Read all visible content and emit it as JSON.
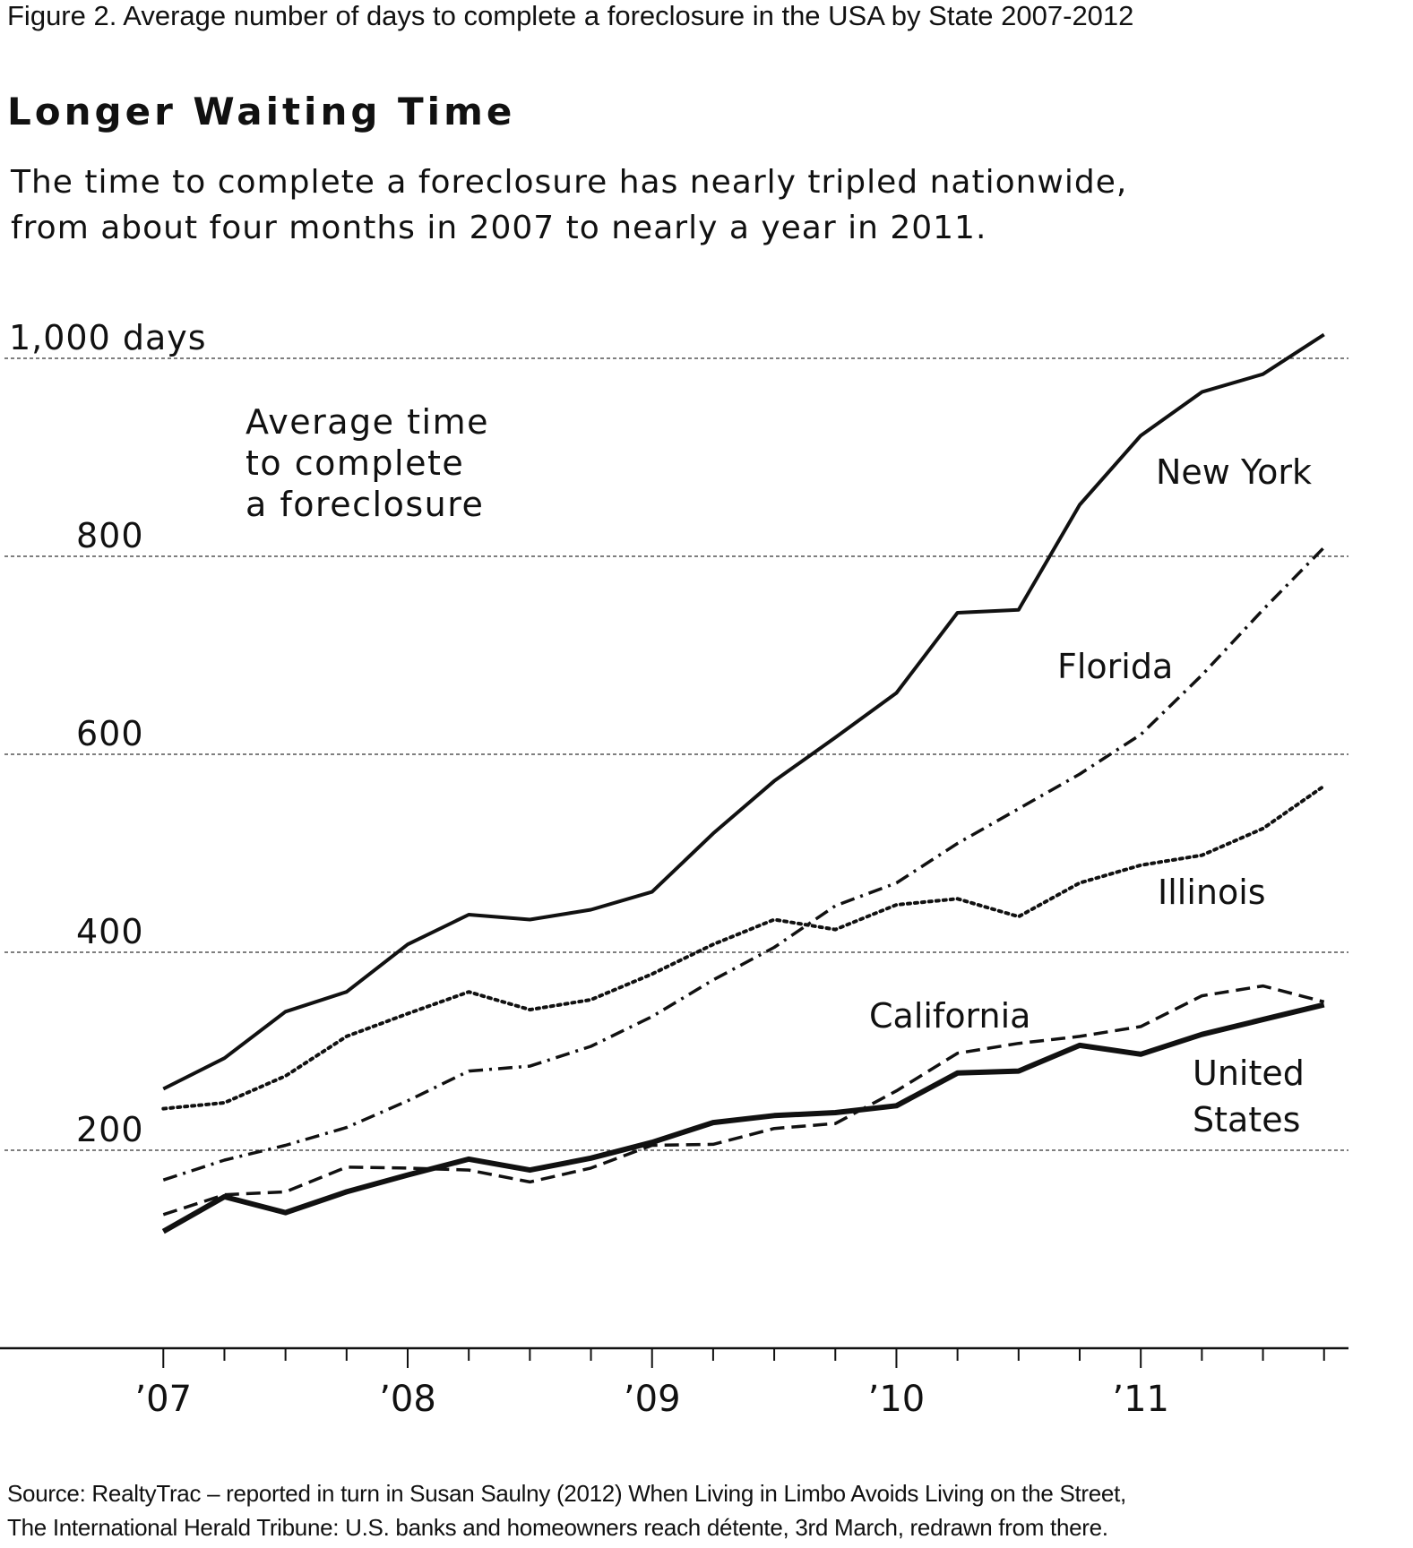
{
  "figure_caption": "Figure 2.  Average number of days to complete a foreclosure in the USA by State 2007-2012",
  "headline": "Longer Waiting Time",
  "subtitle_lines": [
    "The time to complete a foreclosure has nearly tripled nationwide,",
    "from about four months in 2007 to nearly a year in 2011."
  ],
  "source_lines": [
    "Source: RealtyTrac – reported in turn in Susan Saulny (2012) When Living in Limbo Avoids Living on the Street,",
    "The International Herald Tribune: U.S. banks and homeowners reach détente, 3rd March, redrawn from there."
  ],
  "chart_data": {
    "type": "line",
    "title": "Longer Waiting Time",
    "annotation_lines": [
      "Average time",
      "to complete",
      "a foreclosure"
    ],
    "ylim": [
      0,
      1000
    ],
    "y_ticks": [
      {
        "value": 200,
        "label": "200"
      },
      {
        "value": 400,
        "label": "400"
      },
      {
        "value": 600,
        "label": "600"
      },
      {
        "value": 800,
        "label": "800"
      },
      {
        "value": 1000,
        "label": "1,000 days"
      }
    ],
    "x_ticks": [
      {
        "value": 2007,
        "label": "’07"
      },
      {
        "value": 2008,
        "label": "’08"
      },
      {
        "value": 2009,
        "label": "’09"
      },
      {
        "value": 2010,
        "label": "’10"
      },
      {
        "value": 2011,
        "label": "’11"
      }
    ],
    "xlim": [
      2006.35,
      2011.85
    ],
    "x": [
      2007.0,
      2007.25,
      2007.5,
      2007.75,
      2008.0,
      2008.25,
      2008.5,
      2008.75,
      2009.0,
      2009.25,
      2009.5,
      2009.75,
      2010.0,
      2010.25,
      2010.5,
      2010.75,
      2011.0,
      2011.25,
      2011.5,
      2011.75
    ],
    "grid": true,
    "series": [
      {
        "name": "New York",
        "style": "solid",
        "values": [
          262,
          293,
          340,
          360,
          408,
          438,
          433,
          443,
          461,
          520,
          573,
          617,
          662,
          743,
          746,
          852,
          922,
          966,
          984,
          1024
        ],
        "label_lines": [
          "New York"
        ]
      },
      {
        "name": "Florida",
        "style": "dashdot",
        "values": [
          170,
          190,
          205,
          223,
          250,
          280,
          285,
          305,
          335,
          372,
          405,
          447,
          470,
          510,
          545,
          580,
          620,
          680,
          746,
          809
        ],
        "label_lines": [
          "Florida"
        ]
      },
      {
        "name": "Illinois",
        "style": "dotted",
        "values": [
          242,
          248,
          275,
          315,
          338,
          360,
          342,
          352,
          378,
          408,
          433,
          423,
          448,
          454,
          436,
          470,
          488,
          498,
          525,
          568
        ],
        "label_lines": [
          "Illinois"
        ]
      },
      {
        "name": "California",
        "style": "dashed",
        "values": [
          135,
          155,
          158,
          183,
          182,
          180,
          168,
          182,
          205,
          206,
          222,
          227,
          260,
          298,
          308,
          315,
          325,
          356,
          366,
          350
        ],
        "label_lines": [
          "California"
        ]
      },
      {
        "name": "United States",
        "style": "thick",
        "values": [
          118,
          153,
          137,
          158,
          175,
          191,
          180,
          192,
          208,
          228,
          235,
          238,
          245,
          278,
          280,
          306,
          297,
          317,
          332,
          347
        ],
        "label_lines": [
          "United",
          "States"
        ]
      }
    ]
  }
}
